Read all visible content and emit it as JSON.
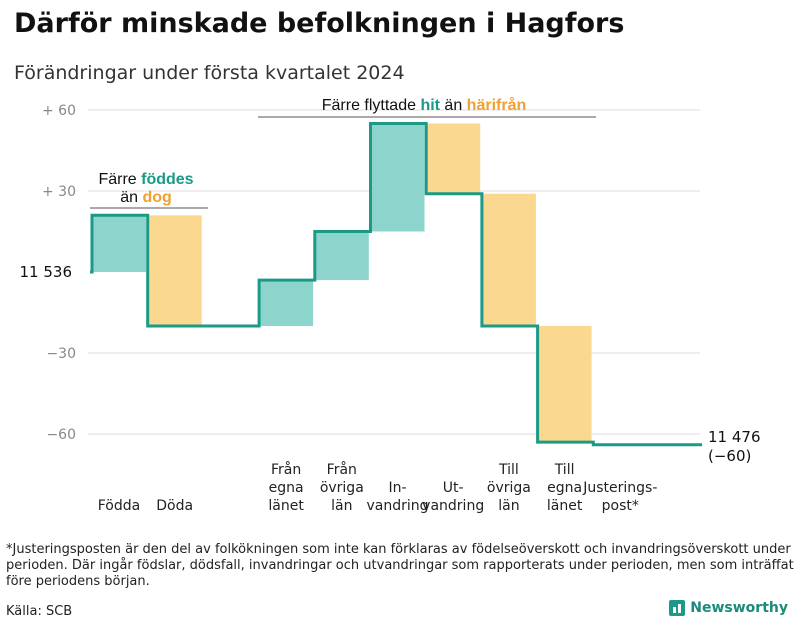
{
  "title": "Därför minskade befolkningen i Hagfors",
  "subtitle": "Förändringar under första kvartalet 2024",
  "footnote": "*Justeringsposten är den del av folkökningen som inte kan förklaras av födelseöverskott och invandringsöverskott under perioden. Där ingår födslar, dödsfall, invandringar och utvandringar som rapporterats under perioden, men som inträffat före periodens början.",
  "source": "Källa: SCB",
  "brand": {
    "name": "Newsworthy",
    "icon": "bar-chart-icon"
  },
  "colors": {
    "increase": "#8dd5cc",
    "decrease": "#fad890",
    "line": "#1a9a87",
    "accent_orange": "#f0a030",
    "tick": "#888888"
  },
  "annotations": {
    "births_deaths": {
      "line1_a": "Färre ",
      "line1_b": "föddes",
      "line2_a": "än ",
      "line2_b": "dog"
    },
    "migration": {
      "a": "Färre flyttade ",
      "b": "hit",
      "c": " än ",
      "d": "härifrån"
    }
  },
  "chart_data": {
    "type": "waterfall",
    "title": "Därför minskade befolkningen i Hagfors",
    "subtitle": "Förändringar under första kvartalet 2024",
    "start_value": 11536,
    "start_label": "11  536",
    "end_value": 11476,
    "end_label": "11 476",
    "end_change_label": "(−60)",
    "ylim": [
      -65,
      62
    ],
    "yticks": [
      {
        "value": 60,
        "label": "+  60"
      },
      {
        "value": 30,
        "label": "+  30"
      },
      {
        "value": -30,
        "label": "−30"
      },
      {
        "value": -60,
        "label": "−60"
      }
    ],
    "steps": [
      {
        "label": "Födda",
        "lines": [
          "Födda"
        ],
        "value": 21,
        "kind": "increase"
      },
      {
        "label": "Döda",
        "lines": [
          "Döda"
        ],
        "value": -41,
        "kind": "decrease"
      },
      {
        "label": "",
        "lines": [],
        "value": 0,
        "kind": "gap"
      },
      {
        "label": "Från egna länet",
        "lines": [
          "Från",
          "egna",
          "länet"
        ],
        "value": 17,
        "kind": "increase"
      },
      {
        "label": "Från övriga län",
        "lines": [
          "Från",
          "övriga",
          "län"
        ],
        "value": 18,
        "kind": "increase"
      },
      {
        "label": "In-vandring",
        "lines": [
          "In-",
          "vandring"
        ],
        "value": 40,
        "kind": "increase"
      },
      {
        "label": "Ut-vandring",
        "lines": [
          "Ut-",
          "vandring"
        ],
        "value": -26,
        "kind": "decrease"
      },
      {
        "label": "Till övriga län",
        "lines": [
          "Till",
          "övriga",
          "län"
        ],
        "value": -49,
        "kind": "decrease"
      },
      {
        "label": "Till egna länet",
        "lines": [
          "Till",
          "egna",
          "länet"
        ],
        "value": -43,
        "kind": "decrease"
      },
      {
        "label": "Justerings-post*",
        "lines": [
          "Justerings-",
          "post*"
        ],
        "value": -1,
        "kind": "adjustment"
      }
    ]
  }
}
